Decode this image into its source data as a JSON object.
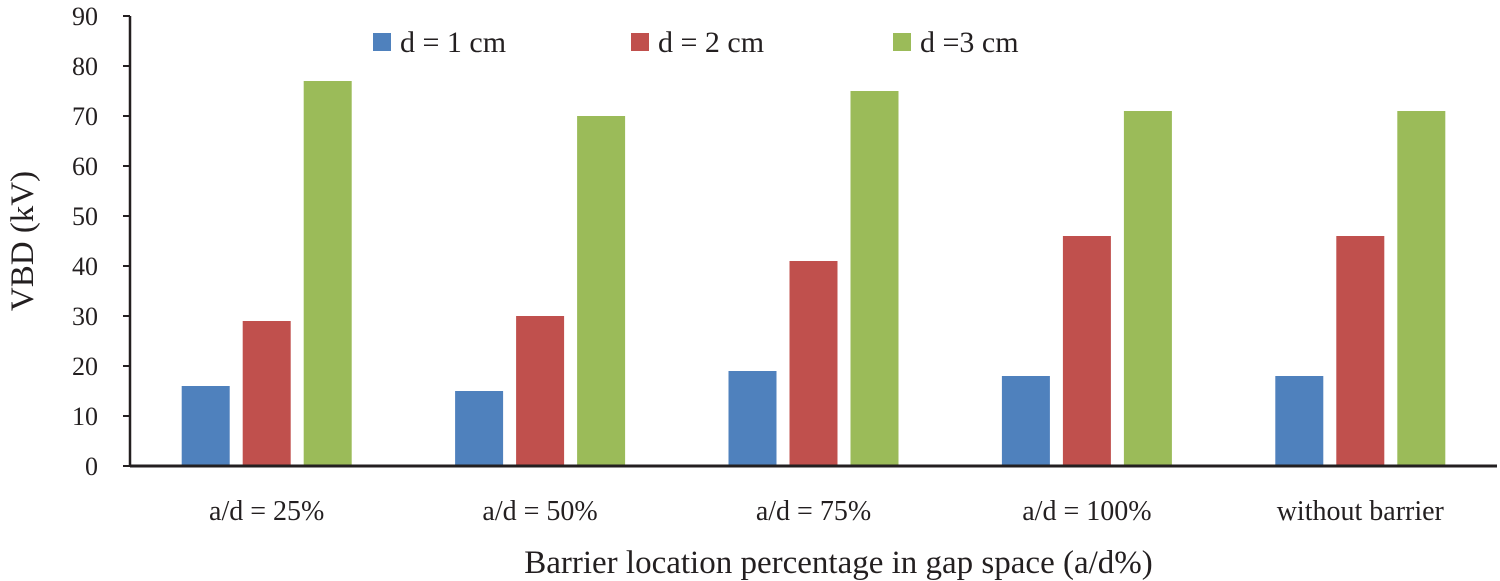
{
  "chart_data": {
    "type": "bar",
    "categories": [
      "a/d = 25%",
      "a/d = 50%",
      "a/d = 75%",
      "a/d = 100%",
      "without barrier"
    ],
    "series": [
      {
        "name": "d = 1 cm",
        "color": "#4f81bd",
        "values": [
          16,
          15,
          19,
          18,
          18
        ]
      },
      {
        "name": "d = 2 cm",
        "color": "#c0504d",
        "values": [
          29,
          30,
          41,
          46,
          46
        ]
      },
      {
        "name": "d =3 cm",
        "color": "#9bbb59",
        "values": [
          77,
          70,
          75,
          71,
          71
        ]
      }
    ],
    "title": "",
    "xlabel": "Barrier location percentage in gap space (a/d%)",
    "ylabel": "VBD (kV)",
    "ylim": [
      0,
      90
    ],
    "yticks": [
      0,
      10,
      20,
      30,
      40,
      50,
      60,
      70,
      80,
      90
    ],
    "grid": false,
    "legend_position": "top"
  }
}
